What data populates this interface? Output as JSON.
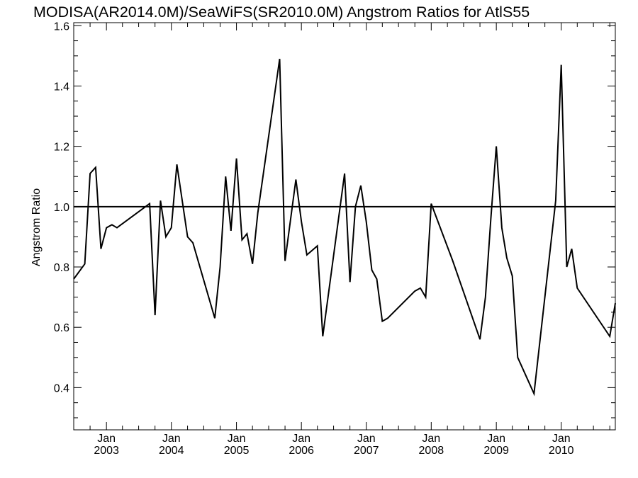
{
  "chart_data": {
    "type": "line",
    "title": "MODISA(AR2014.0M)/SeaWiFS(SR2010.0M)  Angstrom Ratios for AtlS55",
    "xlabel": "",
    "ylabel": "Angstrom Ratio",
    "xlim": [
      "2002-07-01",
      "2010-11-01"
    ],
    "ylim": [
      0.26,
      1.61
    ],
    "y_ticks": [
      "0.4",
      "0.6",
      "0.8",
      "1.0",
      "1.2",
      "1.4",
      "1.6"
    ],
    "y_tick_values": [
      0.4,
      0.6,
      0.8,
      1.0,
      1.2,
      1.4,
      1.6
    ],
    "x_ticks": [
      {
        "date": "2003-01-01",
        "month": "Jan",
        "year": "2003"
      },
      {
        "date": "2004-01-01",
        "month": "Jan",
        "year": "2004"
      },
      {
        "date": "2005-01-01",
        "month": "Jan",
        "year": "2005"
      },
      {
        "date": "2006-01-01",
        "month": "Jan",
        "year": "2006"
      },
      {
        "date": "2007-01-01",
        "month": "Jan",
        "year": "2007"
      },
      {
        "date": "2008-01-01",
        "month": "Jan",
        "year": "2008"
      },
      {
        "date": "2009-01-01",
        "month": "Jan",
        "year": "2009"
      },
      {
        "date": "2010-01-01",
        "month": "Jan",
        "year": "2010"
      }
    ],
    "reference_line": {
      "y": 1.0
    },
    "series": [
      {
        "x": [
          "2002-07",
          "2002-09",
          "2002-10",
          "2002-11",
          "2002-12",
          "2003-01",
          "2003-02",
          "2003-03",
          "2003-09",
          "2003-10",
          "2003-11",
          "2003-12",
          "2004-01",
          "2004-02",
          "2004-04",
          "2004-05",
          "2004-09",
          "2004-10",
          "2004-11",
          "2004-12",
          "2005-01",
          "2005-02",
          "2005-03",
          "2005-04",
          "2005-05",
          "2005-09",
          "2005-10",
          "2005-12",
          "2006-01",
          "2006-02",
          "2006-04",
          "2006-05",
          "2006-09",
          "2006-10",
          "2006-11",
          "2006-12",
          "2007-01",
          "2007-02",
          "2007-03",
          "2007-04",
          "2007-05",
          "2007-10",
          "2007-11",
          "2007-12",
          "2008-01",
          "2008-05",
          "2008-10",
          "2008-11",
          "2008-12",
          "2009-01",
          "2009-02",
          "2009-03",
          "2009-04",
          "2009-05",
          "2009-08",
          "2009-12",
          "2010-01",
          "2010-02",
          "2010-03",
          "2010-04",
          "2010-10",
          "2010-11"
        ],
        "y": [
          0.76,
          0.81,
          1.11,
          1.13,
          0.86,
          0.93,
          0.94,
          0.93,
          1.01,
          0.64,
          1.02,
          0.9,
          0.93,
          1.14,
          0.9,
          0.88,
          0.63,
          0.8,
          1.1,
          0.92,
          1.16,
          0.89,
          0.91,
          0.81,
          0.98,
          1.49,
          0.82,
          1.09,
          0.95,
          0.84,
          0.87,
          0.57,
          1.11,
          0.75,
          1.0,
          1.07,
          0.95,
          0.79,
          0.76,
          0.62,
          0.63,
          0.72,
          0.73,
          0.7,
          1.01,
          0.82,
          0.56,
          0.7,
          0.96,
          1.2,
          0.93,
          0.83,
          0.77,
          0.5,
          0.38,
          1.02,
          1.47,
          0.8,
          0.86,
          0.73,
          0.57,
          0.68
        ]
      }
    ]
  }
}
